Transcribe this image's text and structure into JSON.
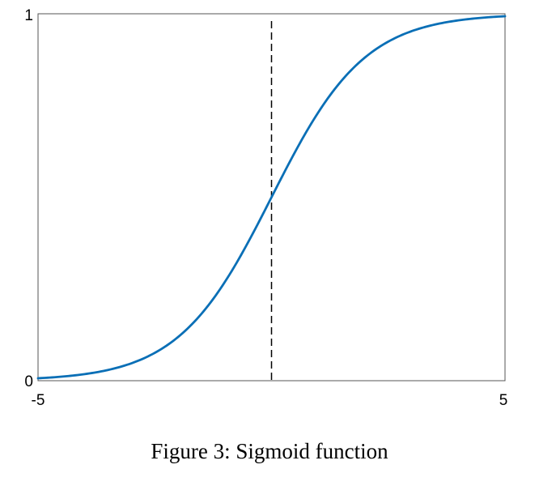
{
  "chart_data": {
    "type": "line",
    "title": "",
    "xlabel": "",
    "ylabel": "",
    "xlim": [
      -5,
      5
    ],
    "ylim": [
      0,
      1
    ],
    "x_ticks": [
      "-5",
      "5"
    ],
    "y_ticks": [
      "0",
      "1"
    ],
    "grid": false,
    "series": [
      {
        "function": "sigmoid",
        "x": [
          -5,
          -4.5,
          -4,
          -3.5,
          -3,
          -2.5,
          -2,
          -1.5,
          -1,
          -0.5,
          0,
          0.5,
          1,
          1.5,
          2,
          2.5,
          3,
          3.5,
          4,
          4.5,
          5
        ],
        "y": [
          0.0067,
          0.011,
          0.018,
          0.0293,
          0.0474,
          0.0759,
          0.1192,
          0.1824,
          0.2689,
          0.3775,
          0.5,
          0.6225,
          0.7311,
          0.8176,
          0.8808,
          0.9241,
          0.9526,
          0.9707,
          0.982,
          0.989,
          0.9933
        ],
        "color": "#0a6fb6"
      }
    ],
    "reference_line": {
      "x": 0,
      "style": "dashed",
      "color": "#000000"
    }
  },
  "caption": "Figure 3: Sigmoid function"
}
